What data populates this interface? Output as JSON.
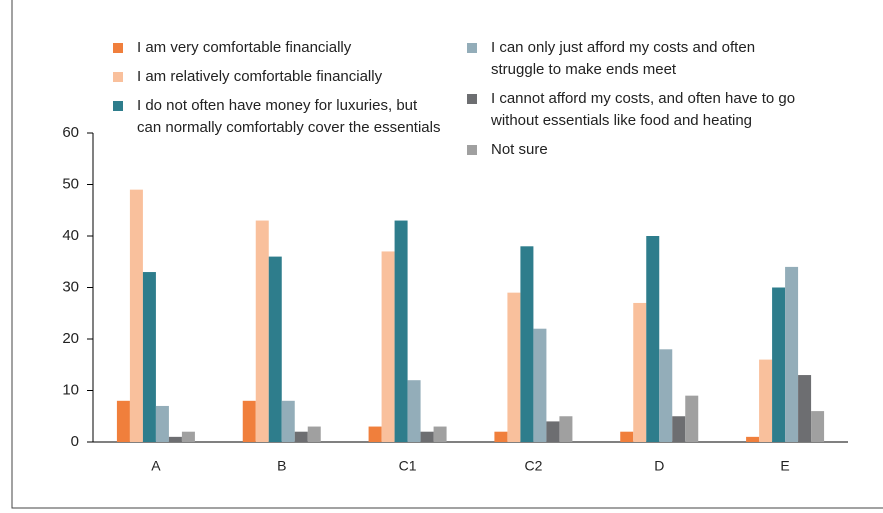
{
  "chart_data": {
    "type": "bar",
    "categories": [
      "A",
      "B",
      "C1",
      "C2",
      "D",
      "E"
    ],
    "series": [
      {
        "name": "I am very comfortable financially",
        "color": "#f07f3c",
        "values": [
          8,
          8,
          3,
          2,
          2,
          1
        ]
      },
      {
        "name": "I am relatively comfortable financially",
        "color": "#f9c09c",
        "values": [
          49,
          43,
          37,
          29,
          27,
          16
        ]
      },
      {
        "name": "I do not often have money for luxuries, but can normally comfortably cover the essentials",
        "color": "#2e7d8c",
        "values": [
          33,
          36,
          43,
          38,
          40,
          30
        ]
      },
      {
        "name": "I can only just afford my costs and often struggle to make ends meet",
        "color": "#93adb9",
        "values": [
          7,
          8,
          12,
          22,
          18,
          34
        ]
      },
      {
        "name": "I cannot afford my costs, and often have to go without essentials like food and heating",
        "color": "#6d6e71",
        "values": [
          1,
          2,
          2,
          4,
          5,
          13
        ]
      },
      {
        "name": "Not sure",
        "color": "#a0a0a0",
        "values": [
          2,
          3,
          3,
          5,
          9,
          6
        ]
      }
    ],
    "ylim": [
      0,
      60
    ],
    "yticks": [
      0,
      10,
      20,
      30,
      40,
      50,
      60
    ]
  }
}
